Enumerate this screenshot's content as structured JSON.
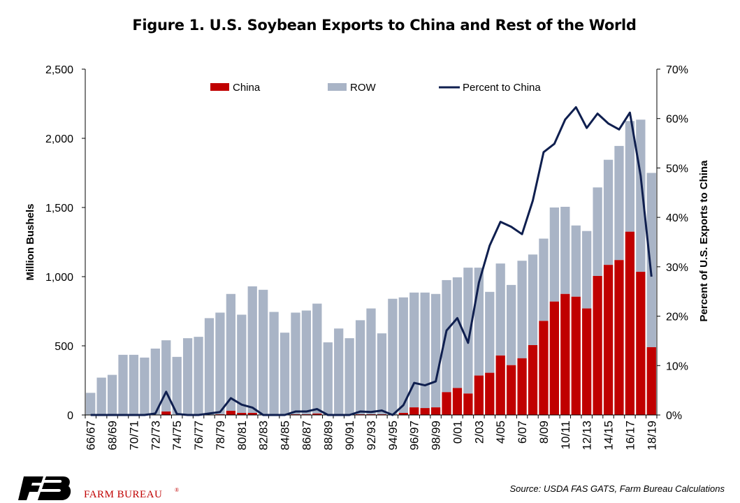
{
  "title": "Figure 1. U.S. Soybean Exports to China and Rest of the World",
  "source": "Source: USDA FAS GATS, Farm Bureau Calculations",
  "brand": {
    "logo_text": "FB",
    "name": "FARM BUREAU",
    "registered": "®"
  },
  "colors": {
    "china": "#c00000",
    "row": "#a9b4c6",
    "line": "#0f1f4f",
    "brand": "#c00000",
    "logo": "#000000"
  },
  "chart_data": {
    "type": "bar",
    "stacked": true,
    "categories": [
      "66/67",
      "67/68",
      "68/69",
      "69/70",
      "70/71",
      "71/72",
      "72/73",
      "73/74",
      "74/75",
      "75/76",
      "76/77",
      "77/78",
      "78/79",
      "79/80",
      "80/81",
      "81/82",
      "82/83",
      "83/84",
      "84/85",
      "85/86",
      "86/87",
      "87/88",
      "88/89",
      "89/90",
      "90/91",
      "91/92",
      "92/93",
      "93/94",
      "94/95",
      "95/96",
      "96/97",
      "97/98",
      "98/99",
      "99/00",
      "0/01",
      "1/02",
      "2/03",
      "3/04",
      "4/05",
      "5/06",
      "6/07",
      "7/08",
      "8/09",
      "9/10",
      "10/11",
      "11/12",
      "12/13",
      "13/14",
      "14/15",
      "15/16",
      "16/17",
      "17/18",
      "18/19"
    ],
    "tick_labels": [
      "66/67",
      "68/69",
      "70/71",
      "72/73",
      "74/75",
      "76/77",
      "78/79",
      "80/81",
      "82/83",
      "84/85",
      "86/87",
      "88/89",
      "90/91",
      "92/93",
      "94/95",
      "96/97",
      "98/99",
      "0/01",
      "2/03",
      "4/05",
      "6/07",
      "8/09",
      "10/11",
      "12/13",
      "14/15",
      "16/17",
      "18/19"
    ],
    "series": [
      {
        "name": "China",
        "values": [
          0,
          0,
          0,
          0,
          0,
          0,
          0,
          25,
          0,
          0,
          0,
          0,
          5,
          30,
          15,
          15,
          0,
          0,
          0,
          5,
          5,
          10,
          0,
          0,
          0,
          5,
          5,
          5,
          0,
          15,
          55,
          50,
          55,
          165,
          195,
          155,
          285,
          305,
          430,
          360,
          410,
          505,
          680,
          820,
          875,
          855,
          770,
          1005,
          1085,
          1120,
          1325,
          1035,
          490
        ]
      },
      {
        "name": "ROW",
        "values": [
          160,
          270,
          290,
          435,
          435,
          415,
          480,
          515,
          420,
          555,
          565,
          700,
          735,
          845,
          710,
          915,
          905,
          745,
          595,
          735,
          750,
          795,
          525,
          625,
          555,
          680,
          765,
          585,
          840,
          835,
          830,
          835,
          820,
          810,
          800,
          910,
          780,
          585,
          665,
          580,
          705,
          655,
          595,
          680,
          630,
          515,
          560,
          640,
          760,
          825,
          800,
          1100,
          1260
        ]
      }
    ],
    "line": {
      "name": "Percent to China",
      "axis": "right",
      "values": [
        0,
        0,
        0,
        0,
        0,
        0,
        0.3,
        4.7,
        0.2,
        0,
        0,
        0.3,
        0.6,
        3.4,
        2.1,
        1.5,
        0,
        0,
        0,
        0.7,
        0.7,
        1.2,
        0,
        0,
        0,
        0.7,
        0.6,
        0.9,
        0,
        2.0,
        6.5,
        6.0,
        6.8,
        17.1,
        19.6,
        14.6,
        26.8,
        34.3,
        39.1,
        38.1,
        36.6,
        43.4,
        53.2,
        54.9,
        59.8,
        62.3,
        58.1,
        61.0,
        59.0,
        57.8,
        61.2,
        48.4,
        28.0
      ]
    },
    "y_left": {
      "label": "Million Bushels",
      "min": 0,
      "max": 2500,
      "ticks": [
        "0",
        "500",
        "1,000",
        "1,500",
        "2,000",
        "2,500"
      ],
      "tick_values": [
        0,
        500,
        1000,
        1500,
        2000,
        2500
      ]
    },
    "y_right": {
      "label": "Percent of U.S. Exports to China",
      "min": 0,
      "max": 70,
      "ticks": [
        "0%",
        "10%",
        "20%",
        "30%",
        "40%",
        "50%",
        "60%",
        "70%"
      ],
      "tick_values": [
        0,
        10,
        20,
        30,
        40,
        50,
        60,
        70
      ]
    },
    "legend": {
      "position": "top",
      "items": [
        "China",
        "ROW",
        "Percent to China"
      ]
    },
    "grid": false
  }
}
